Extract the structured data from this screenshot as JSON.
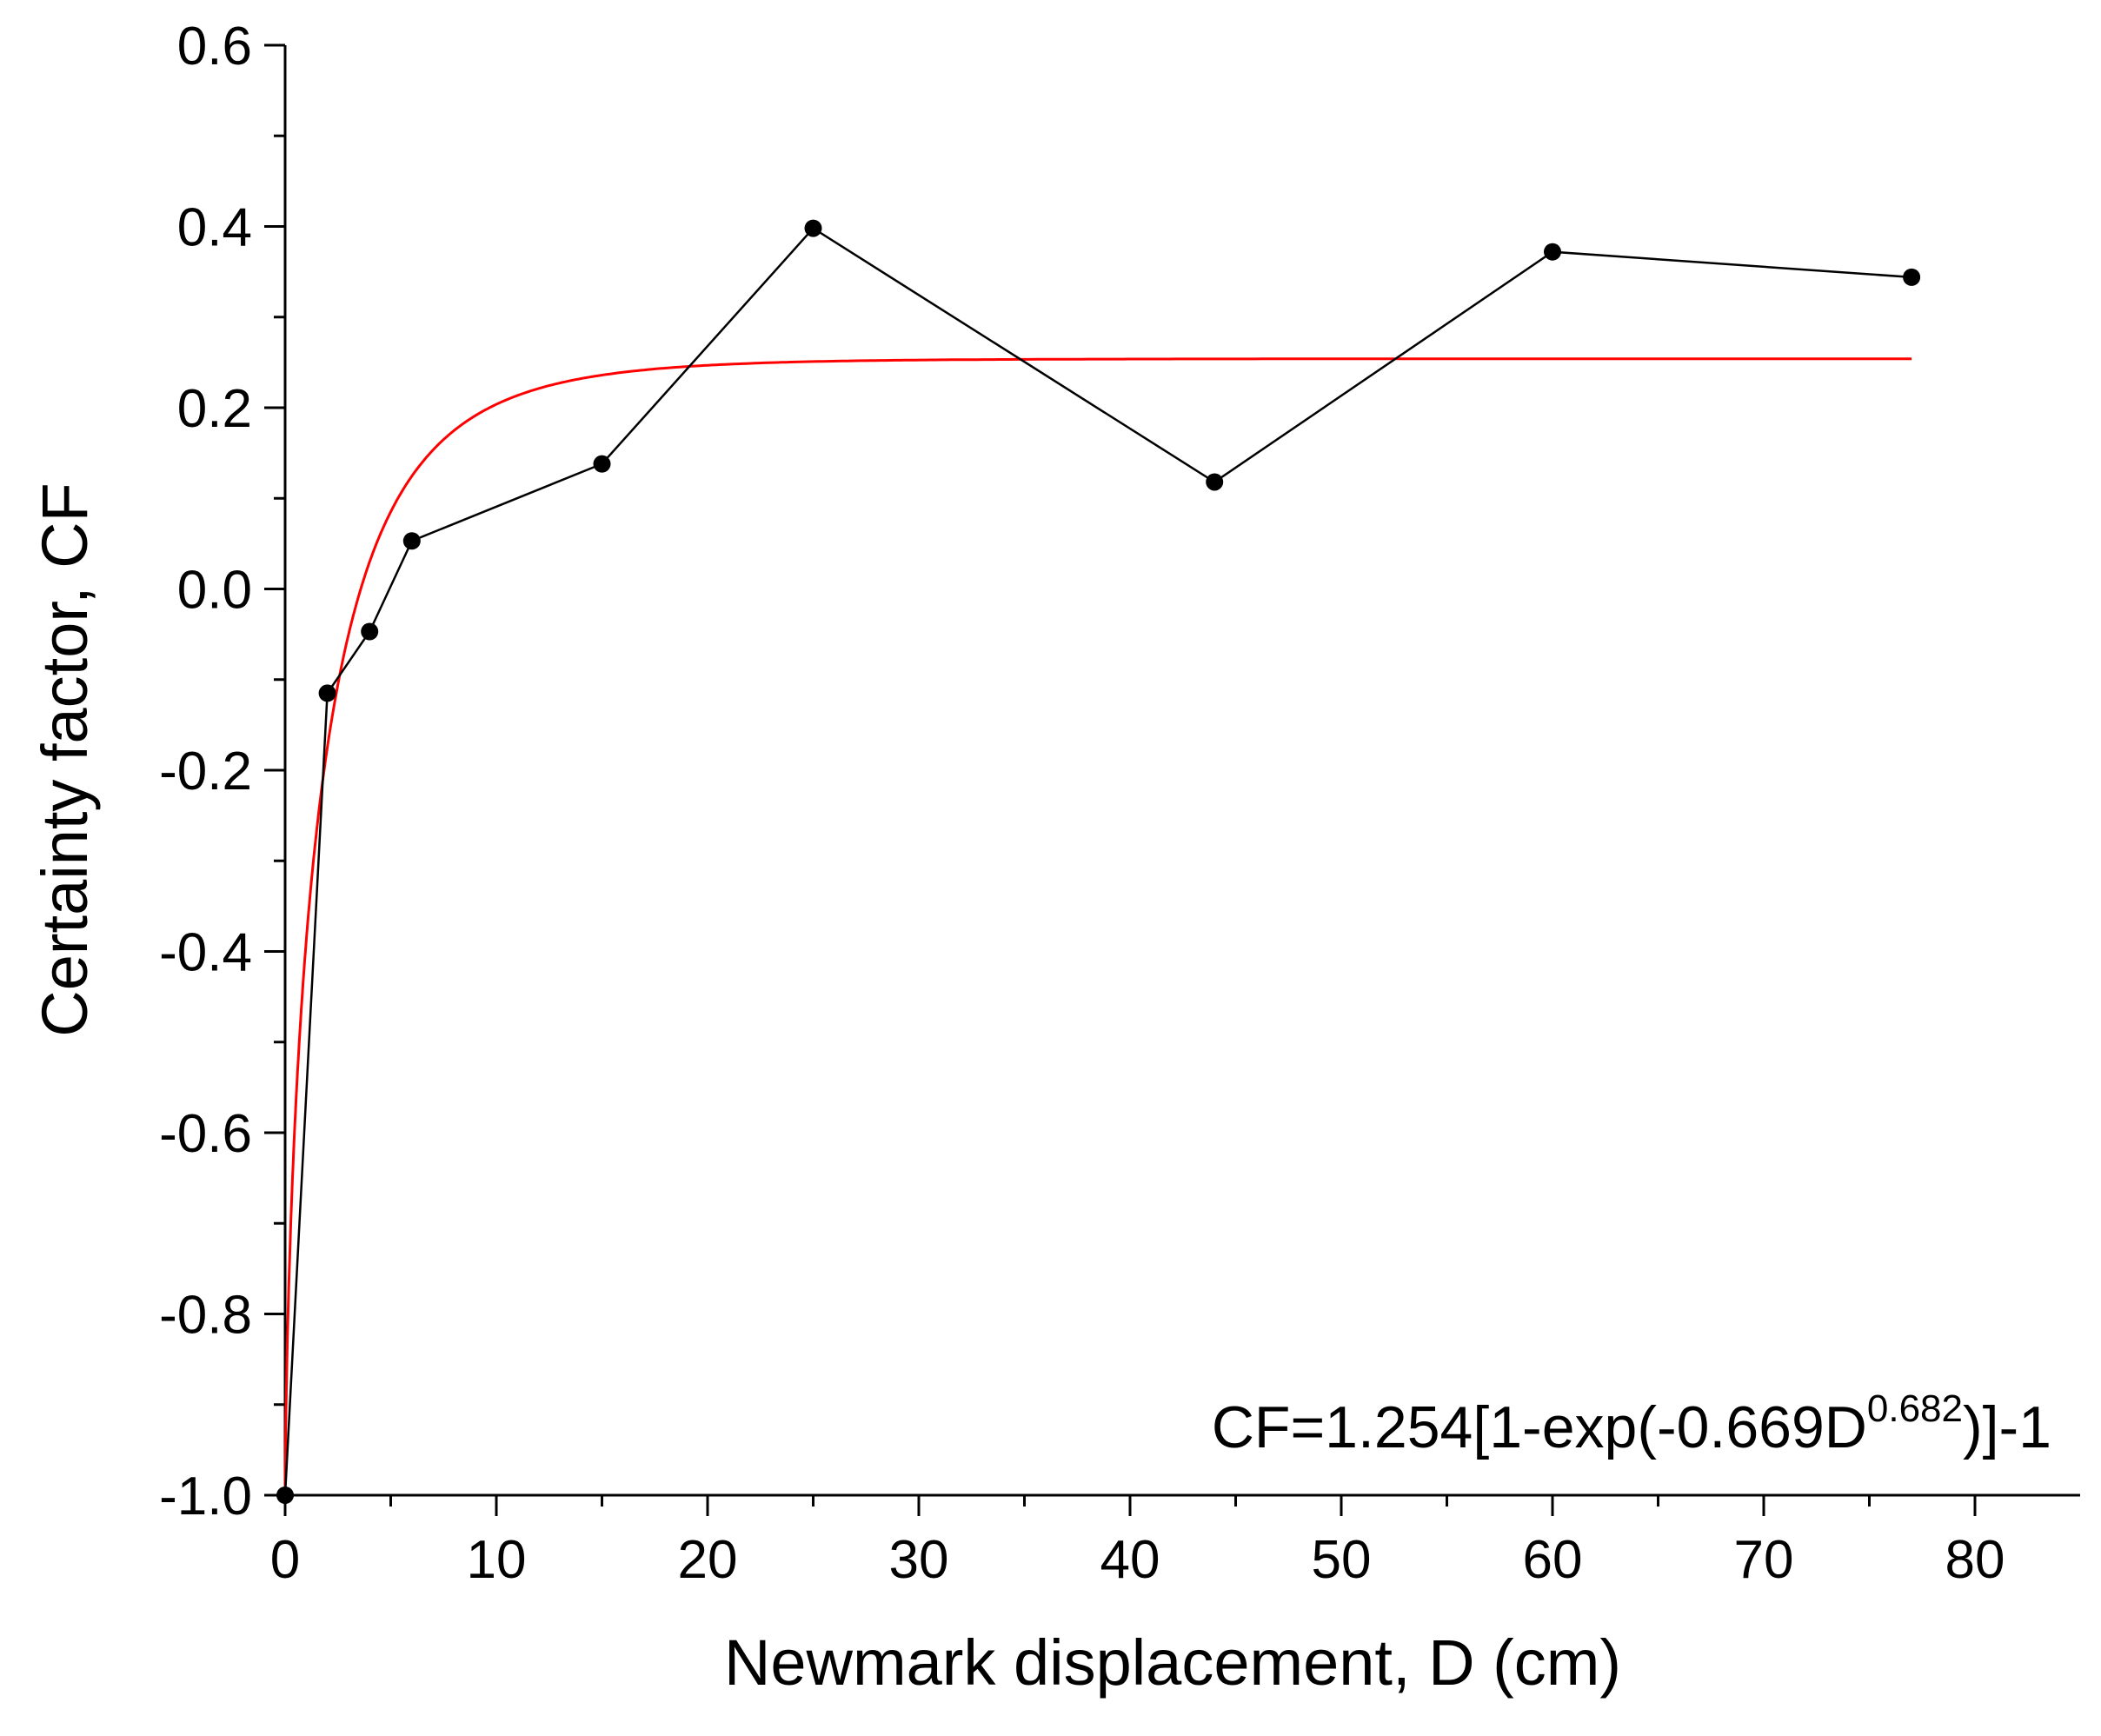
{
  "chart_data": {
    "type": "line",
    "xlabel": "Newmark displacement, D (cm)",
    "ylabel": "Certainty factor, CF",
    "xlim": [
      0,
      85
    ],
    "ylim": [
      -1.0,
      0.6
    ],
    "x_ticks": [
      0,
      10,
      20,
      30,
      40,
      50,
      60,
      70,
      80
    ],
    "x_tick_labels": [
      "0",
      "10",
      "20",
      "30",
      "40",
      "50",
      "60",
      "70",
      "80"
    ],
    "y_ticks": [
      -1.0,
      -0.8,
      -0.6,
      -0.4,
      -0.2,
      0.0,
      0.2,
      0.4,
      0.6
    ],
    "y_tick_labels": [
      "-1.0",
      "-0.8",
      "-0.6",
      "-0.4",
      "-0.2",
      "0.0",
      "0.2",
      "0.4",
      "0.6"
    ],
    "grid": false,
    "series": [
      {
        "style": "line-with-markers",
        "color": "#000000",
        "x": [
          0,
          2,
          4,
          6,
          15,
          25,
          44,
          60,
          77
        ],
        "y": [
          -1.0,
          -0.115,
          -0.047,
          0.053,
          0.138,
          0.398,
          0.118,
          0.372,
          0.344
        ]
      },
      {
        "style": "fitted-curve",
        "color": "#ff0000",
        "equation": {
          "a": 1.254,
          "b": 0.669,
          "c": 0.682
        },
        "x_range": [
          0,
          77
        ]
      }
    ],
    "annotation": {
      "prefix": "CF=1.254[1-exp(-0.669D",
      "superscript": "0.682",
      "suffix": ")]-1"
    }
  }
}
